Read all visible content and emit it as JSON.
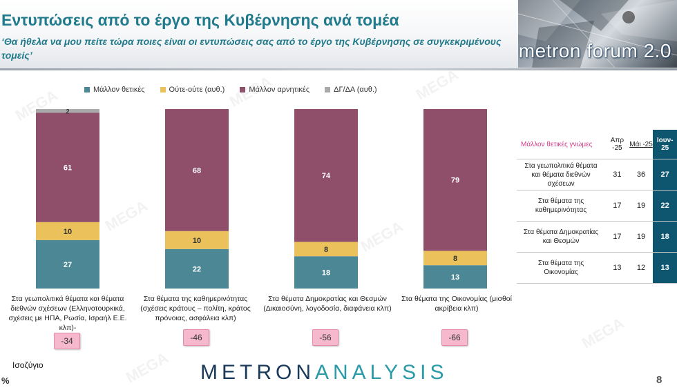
{
  "header": {
    "title": "Εντυπώσεις από το έργο της Κυβέρνησης ανά τομέα",
    "subtitle": "‘Θα ήθελα να μου πείτε τώρα ποιες είναι οι εντυπώσεις σας από το έργο της Κυβέρνησης σε συγκεκριμένους τομείς’",
    "brand": "metron forum 2.0"
  },
  "colors": {
    "positive": "#4b8795",
    "neutral": "#eac15a",
    "negative": "#8f4e6a",
    "dk": "#a9a9a9",
    "title": "#1f7a8c"
  },
  "chart_data": {
    "type": "bar",
    "stacked": true,
    "orientation": "vertical",
    "categories": [
      "Στα γεωπολιτικά θέματα και θέματα διεθνών σχέσεων (Ελληνοτουρκικά, σχέσεις με ΗΠΑ, Ρωσία, Ισραήλ Ε.Ε. κλπ)-",
      "Στα θέματα της καθημερινότητας (σχέσεις κράτους – πολίτη, κράτος πρόνοιας, ασφάλεια κλπ)",
      "Στα θέματα Δημοκρατίας και Θεσμών (Δικαιοσύνη, λογοδοσία, διαφάνεια κλπ)",
      "Στα θέματα της Οικονομίας (μισθοί ακρίβεια κλπ)"
    ],
    "series": [
      {
        "name": "Μάλλον θετικές",
        "values": [
          27,
          22,
          18,
          13
        ]
      },
      {
        "name": "Ούτε-ούτε (αυθ.)",
        "values": [
          10,
          10,
          8,
          8
        ]
      },
      {
        "name": "Μάλλον αρνητικές",
        "values": [
          61,
          68,
          74,
          79
        ]
      },
      {
        "name": "ΔΓ/ΔΑ (αυθ.)",
        "values": [
          2,
          0,
          0,
          0
        ]
      }
    ],
    "balance_label": "Ισοζύγιο",
    "balance": [
      "-34",
      "-46",
      "-56",
      "-66"
    ],
    "legend_position": "top",
    "unit_label": "%"
  },
  "table": {
    "header_label": "Μάλλον θετικές γνώμες",
    "columns": [
      "Απρ -25",
      "Μάι -25",
      "Ιουν- 25"
    ],
    "rows": [
      {
        "label": "Στα γεωπολιτικά θέματα και θέματα διεθνών σχέσεων",
        "values": [
          "31",
          "36",
          "27"
        ]
      },
      {
        "label": "Στα θέματα της καθημερινότητας",
        "values": [
          "17",
          "19",
          "22"
        ]
      },
      {
        "label": "Στα θέματα Δημοκρατίας και Θεσμών",
        "values": [
          "17",
          "19",
          "18"
        ]
      },
      {
        "label": "Στα θέματα της Οικονομίας",
        "values": [
          "13",
          "12",
          "13"
        ]
      }
    ]
  },
  "footer": {
    "logo_part1": "METRON",
    "logo_part2": "ANALYSIS",
    "page_number": "8"
  },
  "watermark": "MEGA"
}
